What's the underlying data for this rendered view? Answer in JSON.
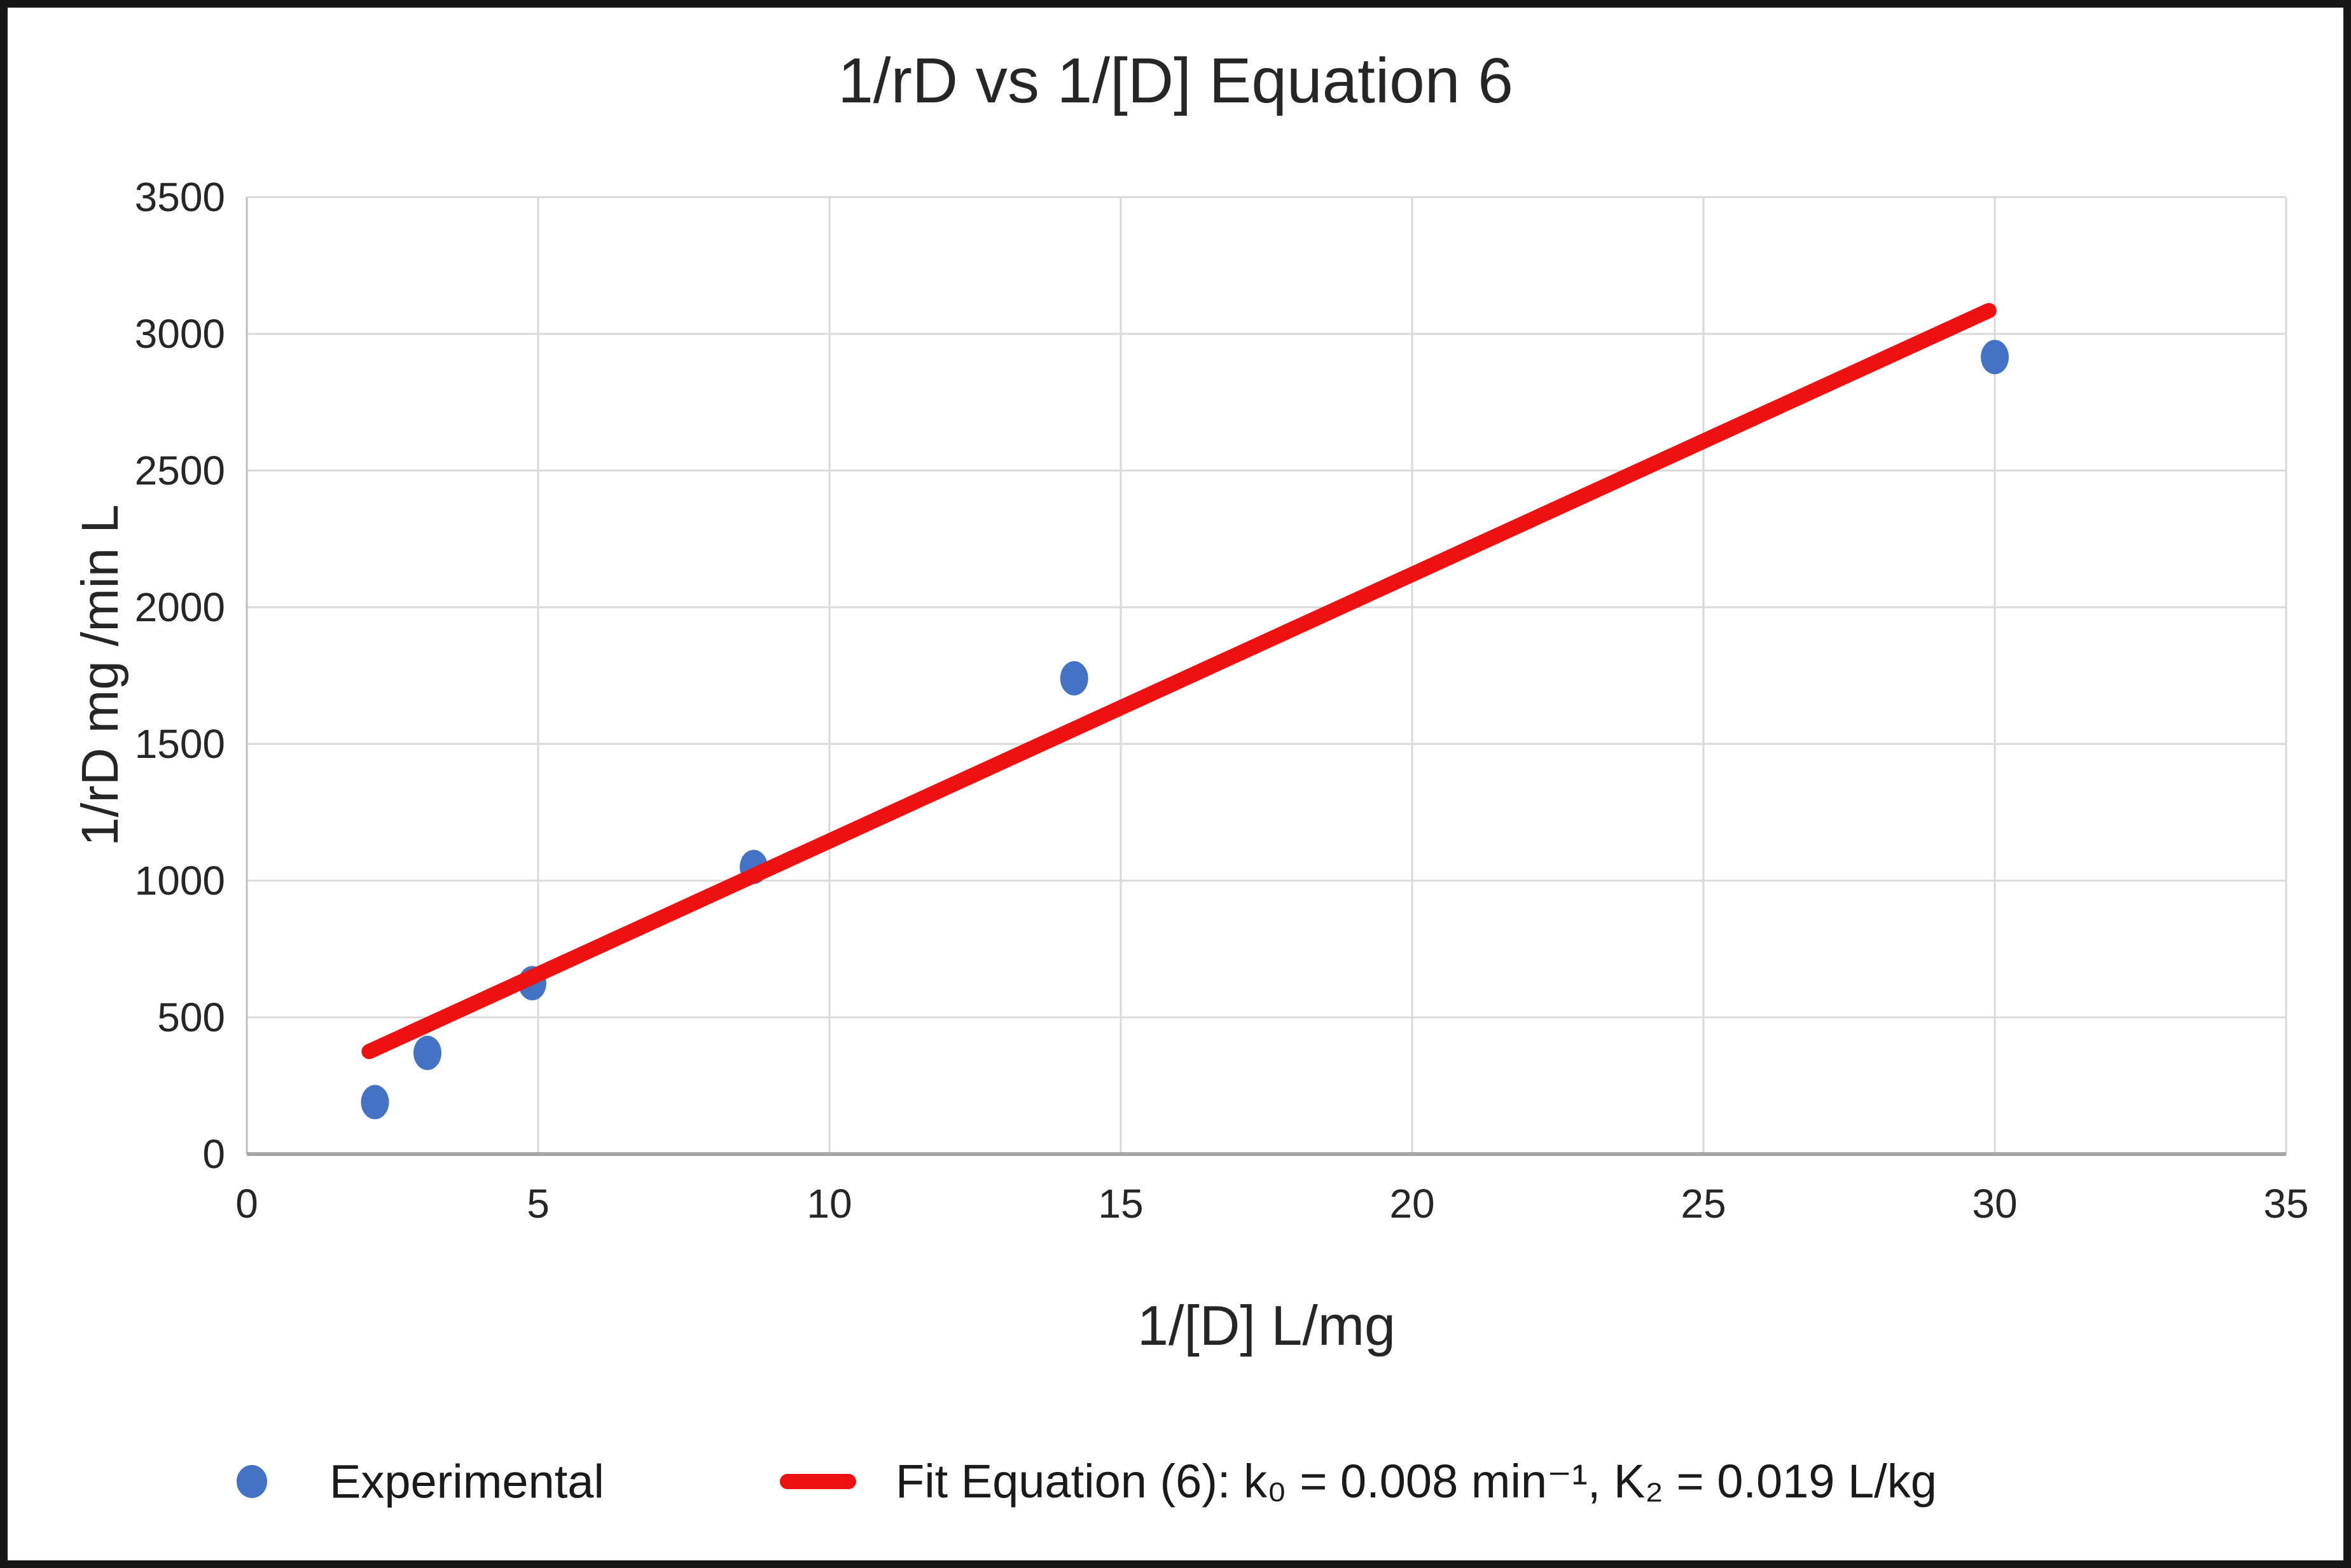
{
  "chart_data": {
    "type": "scatter",
    "title": "1/rD vs 1/[D] Equation 6",
    "xlabel": "1/[D] L/mg",
    "ylabel": "1/rD mg /min L",
    "xlim": [
      0,
      35
    ],
    "ylim": [
      0,
      3500
    ],
    "x_ticks": [
      0,
      5,
      10,
      15,
      20,
      25,
      30,
      35
    ],
    "y_ticks": [
      0,
      500,
      1000,
      1500,
      2000,
      2500,
      3000,
      3500
    ],
    "grid": true,
    "legend_position": "bottom",
    "series": [
      {
        "name": "Experimental",
        "type": "scatter",
        "color": "#4472C4",
        "points": [
          [
            2.2,
            190
          ],
          [
            3.1,
            370
          ],
          [
            4.9,
            625
          ],
          [
            8.7,
            1050
          ],
          [
            14.2,
            1740
          ],
          [
            30.0,
            2915
          ]
        ]
      },
      {
        "name": "Fit Equation (6): k₀ = 0.008 min⁻¹, K₂ = 0.019 L/kg",
        "type": "line",
        "color": "#EE1111",
        "points": [
          [
            2.1,
            375
          ],
          [
            29.9,
            3085
          ]
        ]
      }
    ],
    "colors": {
      "gridline": "#D9D9D9",
      "axis_box": "#BFBFBF",
      "x_axis_line": "#A6A6A6",
      "tick_text": "#262626"
    }
  }
}
